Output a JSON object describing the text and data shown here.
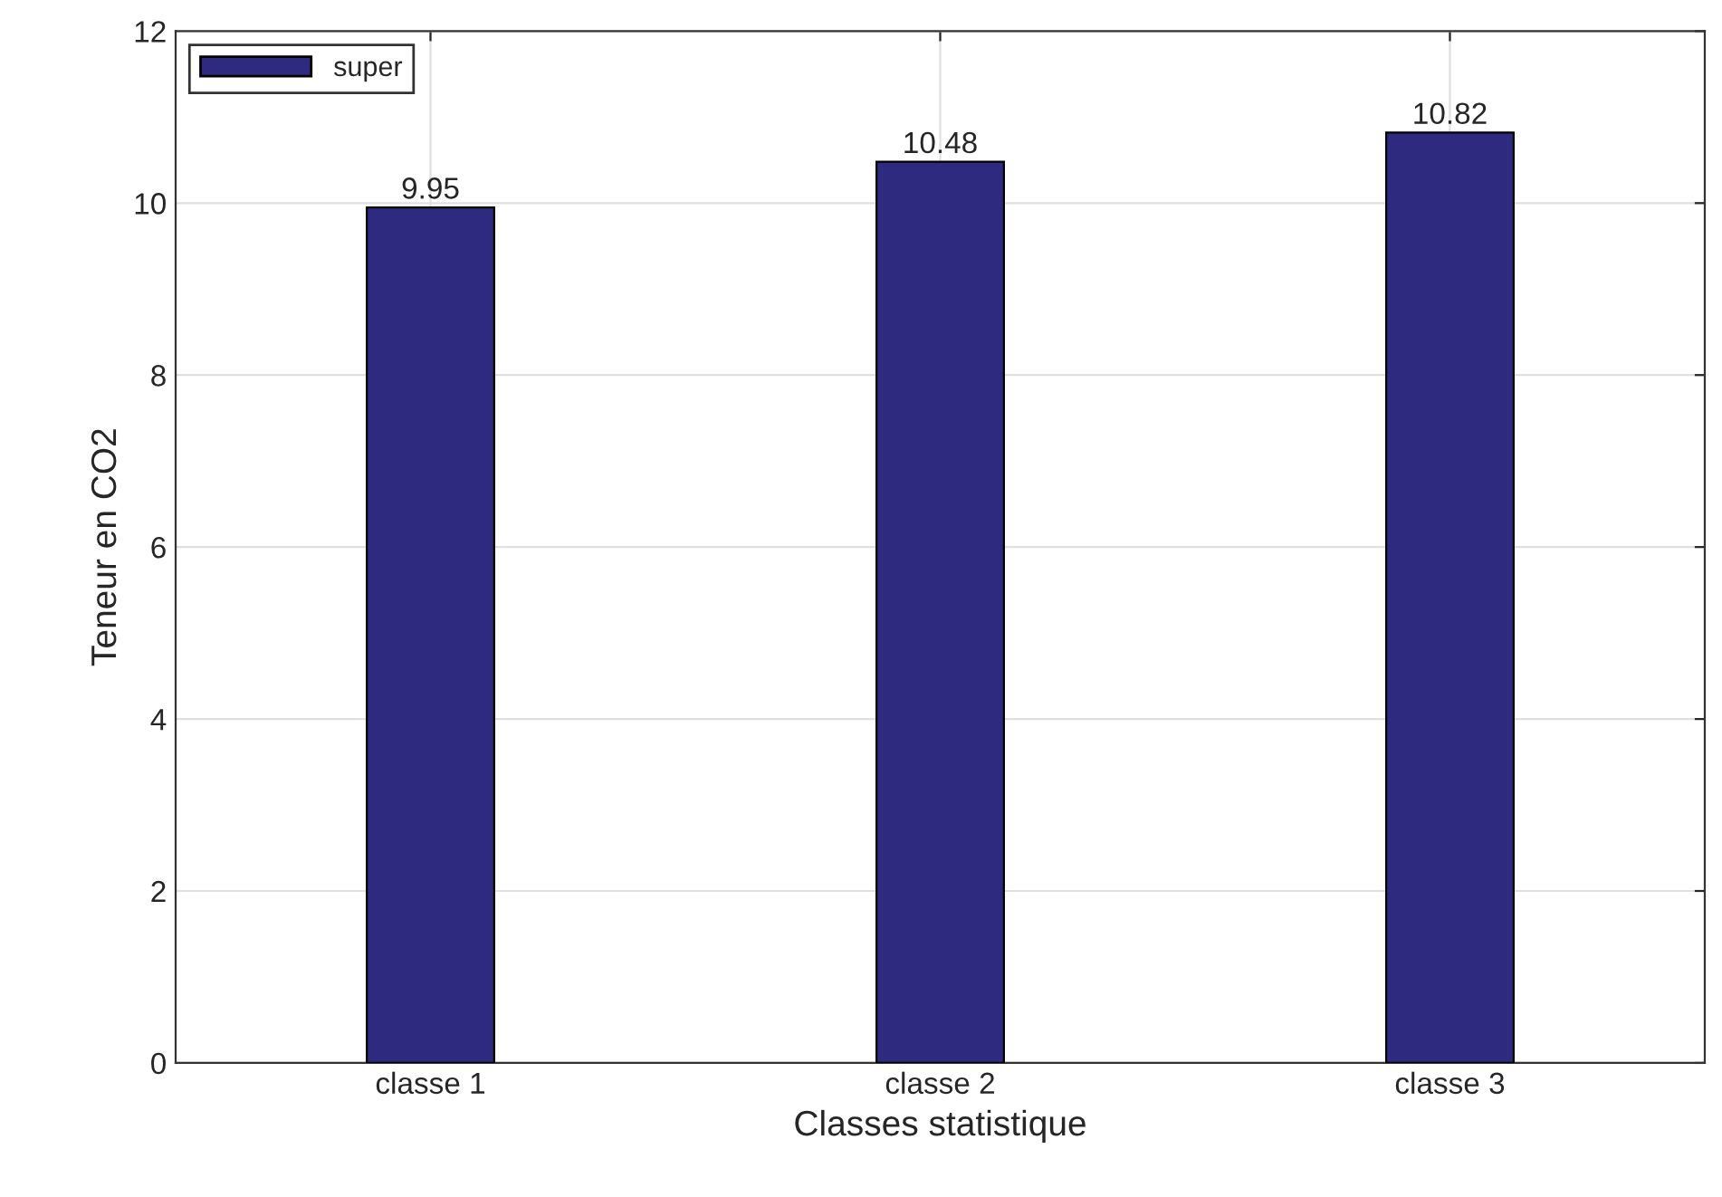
{
  "chart_data": {
    "type": "bar",
    "xlabel": "Classes statistique",
    "ylabel": "Teneur en CO2",
    "categories": [
      "classe 1",
      "classe 2",
      "classe 3"
    ],
    "series": [
      {
        "name": "super",
        "color": "#2e2a80",
        "values": [
          9.95,
          10.48,
          10.82
        ]
      }
    ],
    "ylim": [
      0,
      12
    ],
    "yticks": [
      0,
      2,
      4,
      6,
      8,
      10,
      12
    ],
    "grid": true,
    "legend": "top left",
    "data_labels": true
  }
}
